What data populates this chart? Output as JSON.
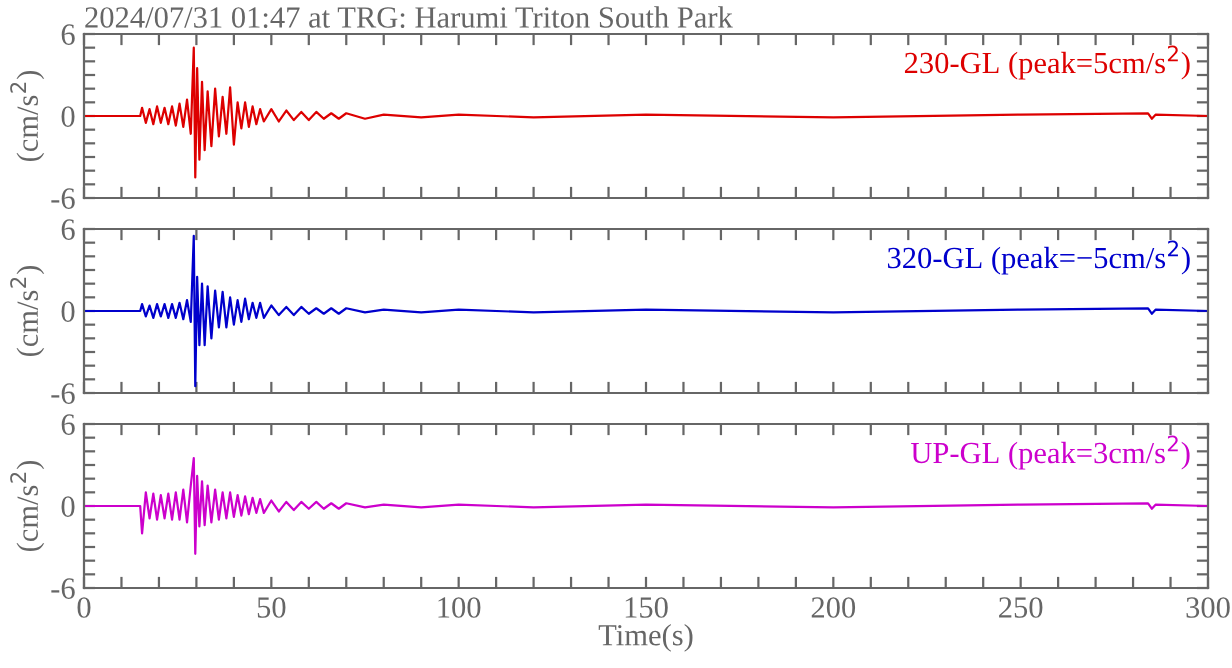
{
  "chart_data": [
    {
      "type": "line",
      "title": "2024/07/31 01:47 at TRG: Harumi Triton South Park",
      "ylabel": "(cm/s$^{2}$)",
      "legend": "top right",
      "tick_labels": "y",
      "xlim": [
        0,
        300
      ],
      "ylim": [
        -6,
        6
      ],
      "xticks": [
        {
          "value": 0,
          "label": null
        },
        {
          "value": 10,
          "label": null
        },
        {
          "value": 20,
          "label": null
        },
        {
          "value": 30,
          "label": null
        },
        {
          "value": 40,
          "label": null
        },
        {
          "value": 50,
          "label": null
        },
        {
          "value": 60,
          "label": null
        },
        {
          "value": 70,
          "label": null
        },
        {
          "value": 80,
          "label": null
        },
        {
          "value": 90,
          "label": null
        },
        {
          "value": 100,
          "label": null
        },
        {
          "value": 110,
          "label": null
        },
        {
          "value": 120,
          "label": null
        },
        {
          "value": 130,
          "label": null
        },
        {
          "value": 140,
          "label": null
        },
        {
          "value": 150,
          "label": null
        },
        {
          "value": 160,
          "label": null
        },
        {
          "value": 170,
          "label": null
        },
        {
          "value": 180,
          "label": null
        },
        {
          "value": 190,
          "label": null
        },
        {
          "value": 200,
          "label": null
        },
        {
          "value": 210,
          "label": null
        },
        {
          "value": 220,
          "label": null
        },
        {
          "value": 230,
          "label": null
        },
        {
          "value": 240,
          "label": null
        },
        {
          "value": 250,
          "label": null
        },
        {
          "value": 260,
          "label": null
        },
        {
          "value": 270,
          "label": null
        },
        {
          "value": 280,
          "label": null
        },
        {
          "value": 290,
          "label": null
        },
        {
          "value": 300,
          "label": null
        }
      ],
      "yticks": [
        -6,
        {
          "value": -5,
          "label": null
        },
        {
          "value": -4,
          "label": null
        },
        {
          "value": -3,
          "label": null
        },
        {
          "value": -2,
          "label": null
        },
        {
          "value": -1,
          "label": null
        },
        0,
        {
          "value": 1,
          "label": null
        },
        {
          "value": 2,
          "label": null
        },
        {
          "value": 3,
          "label": null
        },
        {
          "value": 4,
          "label": null
        },
        {
          "value": 5,
          "label": null
        },
        6
      ],
      "x": [
        0,
        10,
        15,
        15.5,
        16.5,
        17.5,
        18.5,
        19.5,
        20.5,
        21.5,
        22.5,
        23.5,
        24.5,
        25.5,
        26.5,
        27.5,
        28.5,
        29.3,
        29.7,
        30.2,
        30.8,
        31.5,
        32.2,
        33,
        34,
        35,
        36,
        37,
        38,
        39,
        40,
        41,
        42,
        43,
        44,
        45,
        46,
        47,
        48,
        50,
        52,
        54,
        56,
        58,
        60,
        62,
        64,
        66,
        68,
        70,
        75,
        80,
        90,
        100,
        120,
        150,
        200,
        250,
        284,
        285,
        286,
        300
      ],
      "series": [
        {
          "name": "230-GL (peak=5cm/s$^{2}$)",
          "color": "#dd0000",
          "values": [
            0,
            0,
            0,
            0.6,
            -0.5,
            0.5,
            -0.6,
            0.7,
            -0.5,
            0.6,
            -0.6,
            0.7,
            -0.7,
            0.9,
            -0.8,
            1.2,
            -1.3,
            5,
            -4.5,
            3.5,
            -3.2,
            2.5,
            -2.5,
            1.8,
            -2.2,
            2,
            -1.5,
            1.4,
            -1.3,
            2.1,
            -2.1,
            1.0,
            -0.9,
            1.0,
            -0.8,
            0.7,
            -0.6,
            0.5,
            -0.4,
            0.5,
            -0.4,
            0.4,
            -0.3,
            0.3,
            -0.3,
            0.3,
            -0.2,
            0.2,
            -0.2,
            0.2,
            -0.2,
            0.1,
            -0.1,
            0.1,
            -0.1,
            0.1,
            -0.1,
            0.1,
            0.2,
            -0.2,
            0.1,
            0
          ]
        }
      ]
    },
    {
      "type": "line",
      "ylabel": "(cm/s$^{2}$)",
      "legend": "top right",
      "tick_labels": "y",
      "xlim": [
        0,
        300
      ],
      "ylim": [
        -6,
        6
      ],
      "xticks": [
        {
          "value": 0,
          "label": null
        },
        {
          "value": 10,
          "label": null
        },
        {
          "value": 20,
          "label": null
        },
        {
          "value": 30,
          "label": null
        },
        {
          "value": 40,
          "label": null
        },
        {
          "value": 50,
          "label": null
        },
        {
          "value": 60,
          "label": null
        },
        {
          "value": 70,
          "label": null
        },
        {
          "value": 80,
          "label": null
        },
        {
          "value": 90,
          "label": null
        },
        {
          "value": 100,
          "label": null
        },
        {
          "value": 110,
          "label": null
        },
        {
          "value": 120,
          "label": null
        },
        {
          "value": 130,
          "label": null
        },
        {
          "value": 140,
          "label": null
        },
        {
          "value": 150,
          "label": null
        },
        {
          "value": 160,
          "label": null
        },
        {
          "value": 170,
          "label": null
        },
        {
          "value": 180,
          "label": null
        },
        {
          "value": 190,
          "label": null
        },
        {
          "value": 200,
          "label": null
        },
        {
          "value": 210,
          "label": null
        },
        {
          "value": 220,
          "label": null
        },
        {
          "value": 230,
          "label": null
        },
        {
          "value": 240,
          "label": null
        },
        {
          "value": 250,
          "label": null
        },
        {
          "value": 260,
          "label": null
        },
        {
          "value": 270,
          "label": null
        },
        {
          "value": 280,
          "label": null
        },
        {
          "value": 290,
          "label": null
        },
        {
          "value": 300,
          "label": null
        }
      ],
      "yticks": [
        -6,
        {
          "value": -5,
          "label": null
        },
        {
          "value": -4,
          "label": null
        },
        {
          "value": -3,
          "label": null
        },
        {
          "value": -2,
          "label": null
        },
        {
          "value": -1,
          "label": null
        },
        0,
        {
          "value": 1,
          "label": null
        },
        {
          "value": 2,
          "label": null
        },
        {
          "value": 3,
          "label": null
        },
        {
          "value": 4,
          "label": null
        },
        {
          "value": 5,
          "label": null
        },
        6
      ],
      "x": [
        0,
        10,
        15,
        15.5,
        16.5,
        17.5,
        18.5,
        19.5,
        20.5,
        21.5,
        22.5,
        23.5,
        24.5,
        25.5,
        26.5,
        27.5,
        28.5,
        29.3,
        29.7,
        30.2,
        30.8,
        31.5,
        32.2,
        33,
        34,
        35,
        36,
        37,
        38,
        39,
        40,
        41,
        42,
        43,
        44,
        45,
        46,
        47,
        48,
        50,
        52,
        54,
        56,
        58,
        60,
        62,
        64,
        66,
        68,
        70,
        75,
        80,
        90,
        100,
        120,
        150,
        200,
        250,
        284,
        285,
        286,
        300
      ],
      "series": [
        {
          "name": "320-GL (peak=−5cm/s$^{2}$)",
          "color": "#0000cc",
          "values": [
            0,
            0,
            0,
            0.5,
            -0.4,
            0.4,
            -0.5,
            0.5,
            -0.4,
            0.5,
            -0.5,
            0.5,
            -0.5,
            0.6,
            -0.6,
            0.8,
            -0.8,
            5.5,
            -5.5,
            2.5,
            -2.5,
            2,
            -2.5,
            1.8,
            -2,
            1.5,
            -1.2,
            1.4,
            -1.2,
            1.0,
            -1.0,
            0.8,
            -0.8,
            0.9,
            -0.6,
            0.6,
            -0.5,
            0.6,
            -0.5,
            0.4,
            -0.3,
            0.3,
            -0.3,
            0.3,
            -0.2,
            0.2,
            -0.2,
            0.2,
            -0.2,
            0.2,
            -0.1,
            0.1,
            -0.1,
            0.1,
            -0.1,
            0.1,
            -0.1,
            0.1,
            0.2,
            -0.2,
            0.1,
            0
          ]
        }
      ]
    },
    {
      "type": "line",
      "ylabel": "(cm/s$^{2}$)",
      "xlabel": "Time(s)",
      "legend": "top right",
      "xlim": [
        0,
        300
      ],
      "ylim": [
        -6,
        6
      ],
      "xticks": [
        0,
        {
          "value": 10,
          "label": null
        },
        {
          "value": 20,
          "label": null
        },
        {
          "value": 30,
          "label": null
        },
        {
          "value": 40,
          "label": null
        },
        50,
        {
          "value": 60,
          "label": null
        },
        {
          "value": 70,
          "label": null
        },
        {
          "value": 80,
          "label": null
        },
        {
          "value": 90,
          "label": null
        },
        100,
        {
          "value": 110,
          "label": null
        },
        {
          "value": 120,
          "label": null
        },
        {
          "value": 130,
          "label": null
        },
        {
          "value": 140,
          "label": null
        },
        150,
        {
          "value": 160,
          "label": null
        },
        {
          "value": 170,
          "label": null
        },
        {
          "value": 180,
          "label": null
        },
        {
          "value": 190,
          "label": null
        },
        200,
        {
          "value": 210,
          "label": null
        },
        {
          "value": 220,
          "label": null
        },
        {
          "value": 230,
          "label": null
        },
        {
          "value": 240,
          "label": null
        },
        250,
        {
          "value": 260,
          "label": null
        },
        {
          "value": 270,
          "label": null
        },
        {
          "value": 280,
          "label": null
        },
        {
          "value": 290,
          "label": null
        },
        300
      ],
      "yticks": [
        -6,
        {
          "value": -5,
          "label": null
        },
        {
          "value": -4,
          "label": null
        },
        {
          "value": -3,
          "label": null
        },
        {
          "value": -2,
          "label": null
        },
        {
          "value": -1,
          "label": null
        },
        0,
        {
          "value": 1,
          "label": null
        },
        {
          "value": 2,
          "label": null
        },
        {
          "value": 3,
          "label": null
        },
        {
          "value": 4,
          "label": null
        },
        {
          "value": 5,
          "label": null
        },
        6
      ],
      "x": [
        0,
        10,
        15,
        15.5,
        16.5,
        17.5,
        18.5,
        19.5,
        20.5,
        21.5,
        22.5,
        23.5,
        24.5,
        25.5,
        26.5,
        27.5,
        28.5,
        29.3,
        29.7,
        30.2,
        30.8,
        31.5,
        32.2,
        33,
        34,
        35,
        36,
        37,
        38,
        39,
        40,
        41,
        42,
        43,
        44,
        45,
        46,
        47,
        48,
        50,
        52,
        54,
        56,
        58,
        60,
        62,
        64,
        66,
        68,
        70,
        75,
        80,
        90,
        100,
        120,
        150,
        200,
        250,
        284,
        285,
        286,
        300
      ],
      "series": [
        {
          "name": "UP-GL (peak=3cm/s$^{2}$)",
          "color": "#cc00cc",
          "values": [
            0,
            0,
            0,
            -2,
            1,
            -0.9,
            0.9,
            -1,
            0.8,
            -0.9,
            0.9,
            -1,
            1,
            -1,
            1.2,
            -1.2,
            1.5,
            3.5,
            -3.5,
            2.2,
            -1.5,
            1.8,
            -1.4,
            1.5,
            -1.2,
            1.2,
            -1,
            1.0,
            -0.9,
            1.0,
            -0.8,
            0.8,
            -0.7,
            0.7,
            -0.6,
            0.6,
            -0.5,
            0.5,
            -0.5,
            0.4,
            -0.4,
            0.3,
            -0.3,
            0.3,
            -0.2,
            0.3,
            -0.2,
            0.2,
            -0.2,
            0.2,
            -0.1,
            0.1,
            -0.1,
            0.1,
            -0.1,
            0.1,
            -0.1,
            0.1,
            0.2,
            -0.2,
            0.1,
            0
          ]
        }
      ]
    }
  ]
}
